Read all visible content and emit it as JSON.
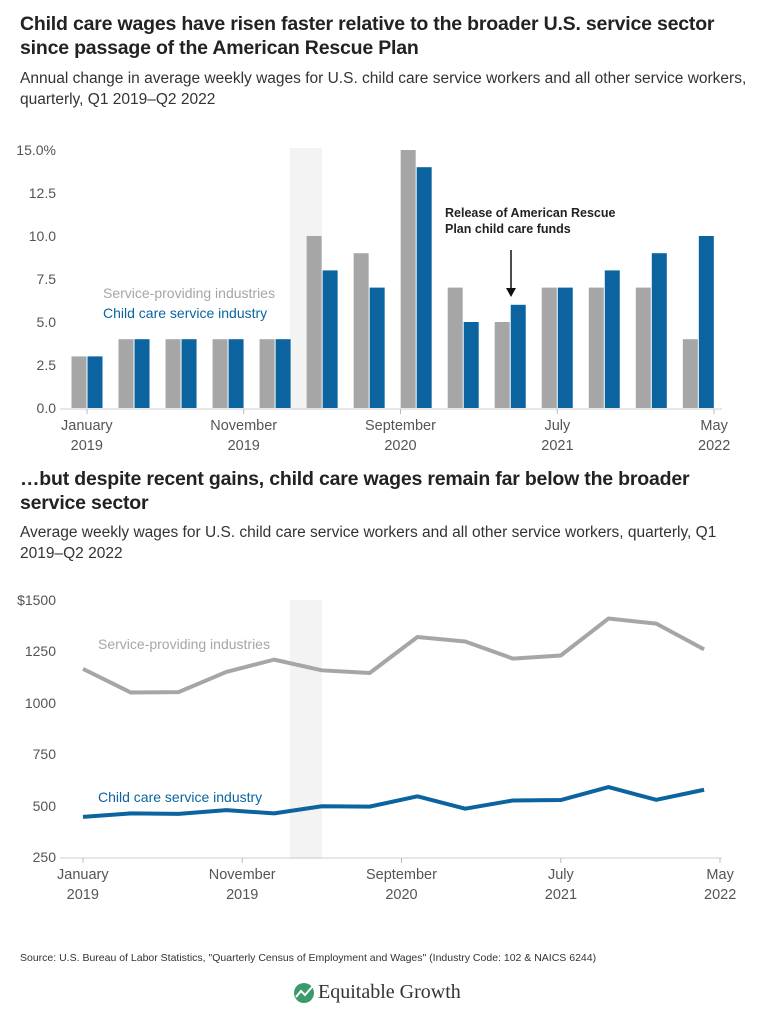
{
  "chart_data": [
    {
      "type": "bar",
      "title": "Child care wages have risen faster relative to the broader U.S. service sector since passage of the American Rescue Plan",
      "subtitle": "Annual change in average weekly wages for U.S. child care service workers and all other service workers, quarterly, Q1 2019–Q2 2022",
      "x": [
        "2019-01",
        "2019-04",
        "2019-07",
        "2019-10",
        "2020-01",
        "2020-04",
        "2020-07",
        "2020-10",
        "2021-01",
        "2021-04",
        "2021-07",
        "2021-10",
        "2022-01",
        "2022-04"
      ],
      "xticks": [
        {
          "value": "2019-01",
          "label": "January 2019"
        },
        {
          "value": "2019-11",
          "label": "November 2019"
        },
        {
          "value": "2020-09",
          "label": "September 2020"
        },
        {
          "value": "2021-07",
          "label": "July 2021"
        },
        {
          "value": "2022-05",
          "label": "May 2022"
        }
      ],
      "ylim": [
        0,
        15
      ],
      "yticks": [
        {
          "value": 0,
          "label": "0.0"
        },
        2.5,
        {
          "value": 5,
          "label": "5.0"
        },
        7.5,
        {
          "value": 10,
          "label": "10.0"
        },
        12.5,
        {
          "value": 15,
          "label": "15.0%"
        }
      ],
      "grid": false,
      "series": [
        {
          "name": "Service-providing industries",
          "color": "#a6a6a6",
          "values": [
            3,
            4,
            4,
            4,
            4,
            10,
            9,
            15,
            7,
            5,
            7,
            7,
            7,
            4
          ]
        },
        {
          "name": "Child care service industry",
          "color": "#0b64a0",
          "values": [
            3,
            4,
            4,
            4,
            4,
            8,
            7,
            14,
            5,
            6,
            7,
            8,
            9,
            10
          ]
        }
      ],
      "annotation": "Release of American Rescue Plan child care funds"
    },
    {
      "type": "line",
      "title": "…but despite recent gains, child care wages remain far below the broader service sector",
      "subtitle": "Average weekly wages for U.S. child care service workers and all other service workers, quarterly, Q1 2019–Q2 2022",
      "x": [
        "2019-01",
        "2019-04",
        "2019-07",
        "2019-10",
        "2020-01",
        "2020-04",
        "2020-07",
        "2020-10",
        "2021-01",
        "2021-04",
        "2021-07",
        "2021-10",
        "2022-01",
        "2022-04"
      ],
      "xticks": [
        {
          "value": "2019-01",
          "label": "January 2019"
        },
        {
          "value": "2019-11",
          "label": "November 2019"
        },
        {
          "value": "2020-09",
          "label": "September 2020"
        },
        {
          "value": "2021-07",
          "label": "July 2021"
        },
        {
          "value": "2022-05",
          "label": "May 2022"
        }
      ],
      "ylim": [
        250,
        1500
      ],
      "yticks": [
        250,
        500,
        750,
        1000,
        1250,
        {
          "value": 1500,
          "label": "$1500"
        }
      ],
      "grid": false,
      "series": [
        {
          "name": "Service-providing industries",
          "color": "#a6a6a6",
          "values": [
            1165,
            1050,
            1052,
            1150,
            1210,
            1158,
            1145,
            1320,
            1298,
            1215,
            1230,
            1410,
            1385,
            1260
          ]
        },
        {
          "name": "Child care service industry",
          "color": "#0b64a0",
          "values": [
            445,
            462,
            460,
            478,
            462,
            497,
            495,
            545,
            485,
            525,
            527,
            590,
            528,
            577
          ]
        }
      ]
    }
  ],
  "source": "Source: U.S. Bureau of Labor Statistics, \"Quarterly Census of Employment and Wages\" (Industry Code: 102 & NAICS 6244)",
  "logo": "Equitable Growth"
}
